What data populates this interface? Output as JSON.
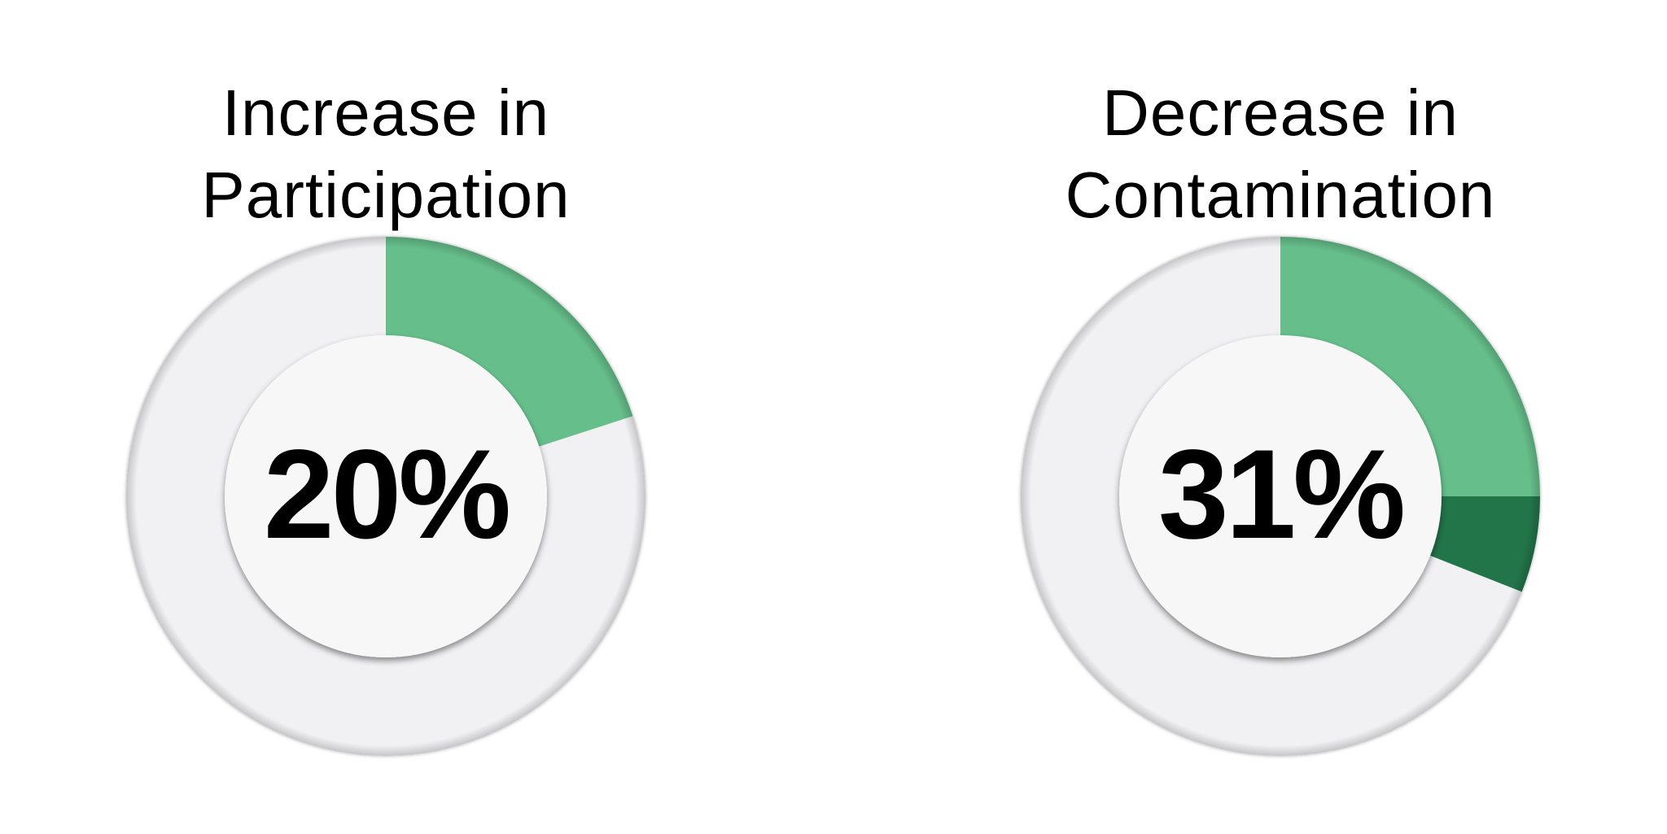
{
  "chart_data": [
    {
      "type": "pie",
      "variant": "donut",
      "title": "Increase in Participation",
      "title_lines": [
        "Increase in",
        "Participation"
      ],
      "value_label": "20%",
      "value": 20,
      "segments": [
        {
          "label": "Increase",
          "value": 20,
          "color": "#66bf8b"
        },
        {
          "label": "Remainder",
          "value": 80,
          "color": "#f1f1f3"
        }
      ]
    },
    {
      "type": "pie",
      "variant": "donut",
      "title": "Decrease in Contamination",
      "title_lines": [
        "Decrease in",
        "Contamination"
      ],
      "value_label": "31%",
      "value": 31,
      "segments": [
        {
          "label": "Decrease (part 1)",
          "value": 25,
          "color": "#66bf8b"
        },
        {
          "label": "Decrease (part 2)",
          "value": 6,
          "color": "#247548"
        },
        {
          "label": "Remainder",
          "value": 69,
          "color": "#f1f1f3"
        }
      ]
    }
  ],
  "colors": {
    "accent_light": "#66bf8b",
    "accent_dark": "#247548",
    "ring_background": "#f1f1f3",
    "center_fill": "#f7f7f7",
    "text": "#000000"
  }
}
